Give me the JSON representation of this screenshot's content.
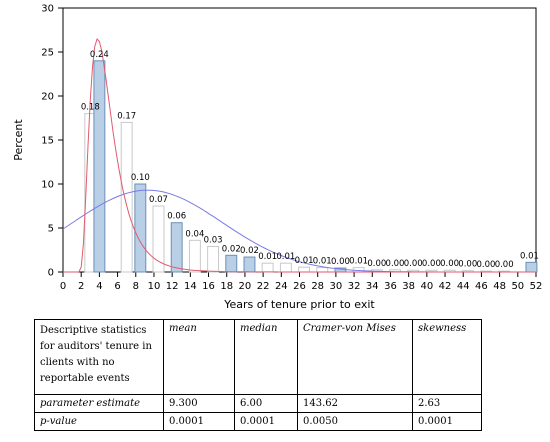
{
  "chart_data": {
    "type": "bar",
    "ylabel": "Percent",
    "xlabel": "Years of tenure prior to exit",
    "xlim": [
      0,
      52
    ],
    "ylim": [
      0,
      30
    ],
    "x_ticks": [
      0,
      2,
      4,
      6,
      8,
      10,
      12,
      14,
      16,
      18,
      20,
      22,
      24,
      26,
      28,
      30,
      32,
      34,
      36,
      38,
      40,
      42,
      44,
      46,
      48,
      50,
      52
    ],
    "y_ticks": [
      0,
      5,
      10,
      15,
      20,
      25,
      30
    ],
    "bars": [
      {
        "x": 3,
        "value": 18.0,
        "label": "0.18",
        "highlight": false
      },
      {
        "x": 4,
        "value": 24.0,
        "label": "0.24",
        "highlight": true
      },
      {
        "x": 7,
        "value": 17.0,
        "label": "0.17",
        "highlight": false
      },
      {
        "x": 8.5,
        "value": 10.0,
        "label": "0.10",
        "highlight": true
      },
      {
        "x": 10.5,
        "value": 7.5,
        "label": "0.07",
        "highlight": false
      },
      {
        "x": 12.5,
        "value": 5.6,
        "label": "0.06",
        "highlight": true
      },
      {
        "x": 14.5,
        "value": 3.6,
        "label": "0.04",
        "highlight": false
      },
      {
        "x": 16.5,
        "value": 2.9,
        "label": "0.03",
        "highlight": false
      },
      {
        "x": 18.5,
        "value": 1.9,
        "label": "0.02",
        "highlight": true
      },
      {
        "x": 20.5,
        "value": 1.7,
        "label": "0.02",
        "highlight": true
      },
      {
        "x": 22.5,
        "value": 1.0,
        "label": "0.01",
        "highlight": false
      },
      {
        "x": 24.5,
        "value": 1.0,
        "label": "0.01",
        "highlight": false
      },
      {
        "x": 26.5,
        "value": 0.55,
        "label": "0.01",
        "highlight": false
      },
      {
        "x": 28.5,
        "value": 0.5,
        "label": "0.01",
        "highlight": false
      },
      {
        "x": 30.5,
        "value": 0.45,
        "label": "0.00",
        "highlight": true
      },
      {
        "x": 32.5,
        "value": 0.5,
        "label": "0.01",
        "highlight": false
      },
      {
        "x": 34.5,
        "value": 0.25,
        "label": "0.00",
        "highlight": false
      },
      {
        "x": 36.5,
        "value": 0.25,
        "label": "0.00",
        "highlight": false
      },
      {
        "x": 38.5,
        "value": 0.2,
        "label": "0.00",
        "highlight": false
      },
      {
        "x": 40.5,
        "value": 0.2,
        "label": "0.00",
        "highlight": false
      },
      {
        "x": 42.5,
        "value": 0.2,
        "label": "0.00",
        "highlight": false
      },
      {
        "x": 44.5,
        "value": 0.15,
        "label": "0.00",
        "highlight": false
      },
      {
        "x": 46.5,
        "value": 0.1,
        "label": "0.00",
        "highlight": false
      },
      {
        "x": 48.5,
        "value": 0.1,
        "label": "0.00",
        "highlight": false
      },
      {
        "x": 51.5,
        "value": 1.1,
        "label": "0.01",
        "highlight": true
      }
    ],
    "curves": [
      {
        "kind": "kernel",
        "color": "#e05a6e"
      },
      {
        "kind": "normal",
        "color": "#7a7ae8"
      }
    ],
    "colors": {
      "bar_fill": "#b9cfe6",
      "bar_stroke": "#000000",
      "axis": "#000000"
    }
  },
  "stats_table": {
    "header": [
      "Descriptive statistics for auditors' tenure in clients with no reportable events",
      "mean",
      "median",
      "Cramer-von Mises",
      "skewness"
    ],
    "rows": [
      [
        "parameter estimate",
        "9.300",
        "6.00",
        "143.62",
        "2.63"
      ],
      [
        "p-value",
        "0.0001",
        "0.0001",
        "0.0050",
        "0.0001"
      ]
    ]
  }
}
